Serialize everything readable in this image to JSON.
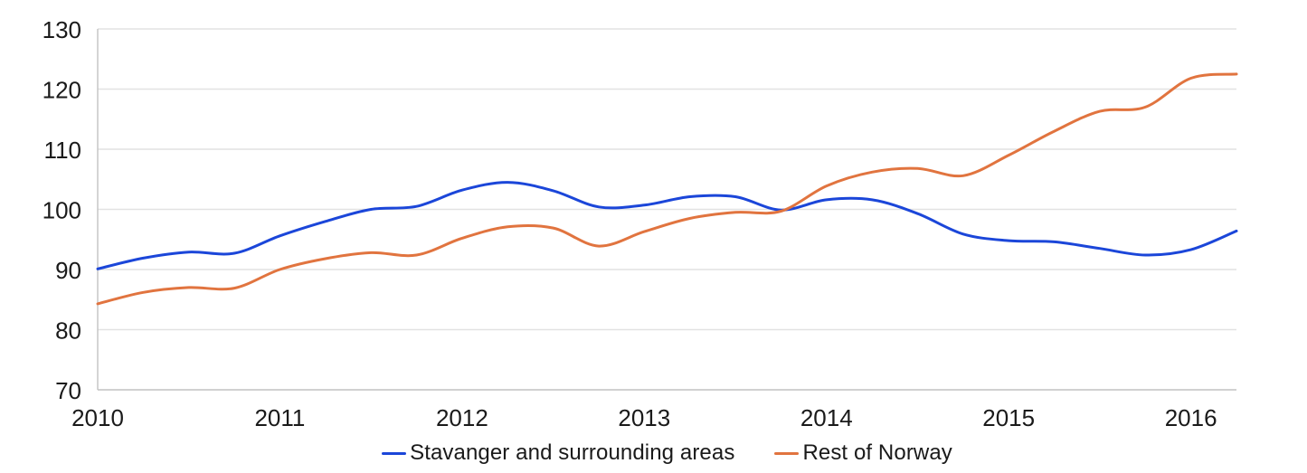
{
  "chart_data": {
    "type": "line",
    "title": "",
    "xlabel": "",
    "ylabel": "",
    "xlim": [
      2010,
      2016.25
    ],
    "ylim": [
      70,
      130
    ],
    "x_ticks": [
      2010,
      2011,
      2012,
      2013,
      2014,
      2015,
      2016
    ],
    "y_ticks": [
      70,
      80,
      90,
      100,
      110,
      120,
      130
    ],
    "grid": "horizontal",
    "legend_position": "bottom-center",
    "x": [
      2010,
      2010.25,
      2010.5,
      2010.75,
      2011,
      2011.25,
      2011.5,
      2011.75,
      2012,
      2012.25,
      2012.5,
      2012.75,
      2013,
      2013.25,
      2013.5,
      2013.75,
      2014,
      2014.25,
      2014.5,
      2014.75,
      2015,
      2015.25,
      2015.5,
      2015.75,
      2016,
      2016.25
    ],
    "series": [
      {
        "name": "Stavanger and surrounding areas",
        "color": "#1b46d9",
        "values": [
          90.1,
          91.9,
          92.9,
          92.7,
          95.6,
          98.0,
          100.0,
          100.5,
          103.2,
          104.5,
          103.1,
          100.4,
          100.7,
          102.1,
          102.1,
          99.9,
          101.6,
          101.6,
          99.3,
          95.9,
          94.8,
          94.6,
          93.5,
          92.4,
          93.3,
          96.4
        ]
      },
      {
        "name": "Rest of Norway",
        "color": "#e1743f",
        "values": [
          84.3,
          86.2,
          87.0,
          86.9,
          90.0,
          91.8,
          92.8,
          92.4,
          95.2,
          97.1,
          96.9,
          93.9,
          96.3,
          98.5,
          99.5,
          99.7,
          103.9,
          106.2,
          106.8,
          105.6,
          109.0,
          113.0,
          116.3,
          117.0,
          121.8,
          122.5
        ]
      }
    ]
  },
  "colors": {
    "background": "#ffffff",
    "grid": "#e2e2e2",
    "axis": "#c2c2c2",
    "tick_text": "#1a1a1a"
  }
}
